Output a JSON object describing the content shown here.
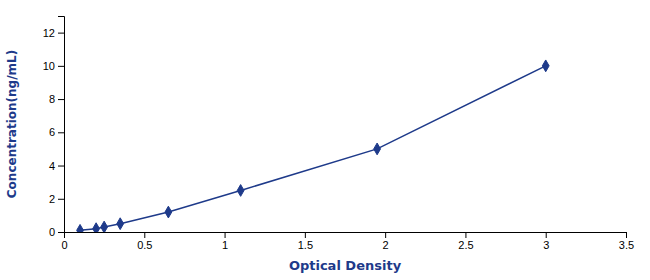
{
  "chart_data": {
    "type": "line",
    "x": [
      0.1,
      0.2,
      0.25,
      0.35,
      0.65,
      1.1,
      1.95,
      3.0
    ],
    "values": [
      0.1,
      0.2,
      0.3,
      0.5,
      1.2,
      2.5,
      5.0,
      10.0
    ],
    "xlabel": "Optical Density",
    "ylabel": "Concentration(ng/mL)",
    "xlim": [
      0,
      3.5
    ],
    "ylim": [
      0,
      13
    ],
    "xticks": [
      0,
      0.5,
      1,
      1.5,
      2,
      2.5,
      3,
      3.5
    ],
    "yticks": [
      0,
      2,
      4,
      6,
      8,
      10,
      12
    ],
    "color": "#1e3a8a",
    "marker": "diamond"
  }
}
